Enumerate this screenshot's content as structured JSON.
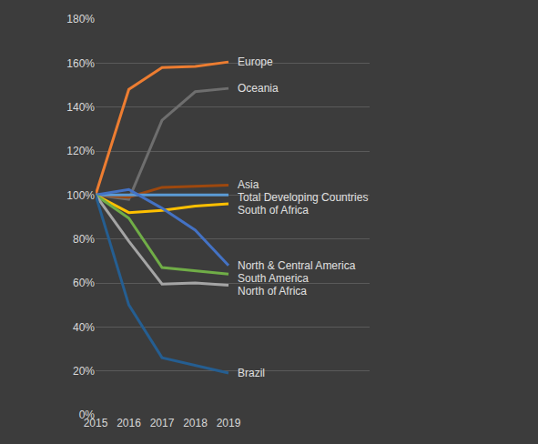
{
  "chart_data": {
    "type": "line",
    "categories": [
      "2015",
      "2016",
      "2017",
      "2018",
      "2019"
    ],
    "series": [
      {
        "name": "Europe",
        "color": "#ed7d31",
        "values": [
          100,
          148,
          158,
          158.5,
          160.5
        ]
      },
      {
        "name": "Oceania",
        "color": "#6e6e6e",
        "values": [
          100,
          98,
          134,
          147,
          148.5
        ]
      },
      {
        "name": "Asia",
        "color": "#9e480e",
        "values": [
          100,
          99,
          103.5,
          104,
          104.5
        ]
      },
      {
        "name": "Total Developing Countries",
        "color": "#5b9bd5",
        "values": [
          100,
          100,
          100,
          100,
          100
        ]
      },
      {
        "name": "South of Africa",
        "color": "#ffc000",
        "values": [
          100,
          92,
          93,
          95,
          96
        ]
      },
      {
        "name": "North & Central America",
        "color": "#4472c4",
        "values": [
          100,
          102.5,
          94,
          84,
          68
        ]
      },
      {
        "name": "South America",
        "color": "#70ad47",
        "values": [
          100,
          89.5,
          67,
          65.5,
          64
        ]
      },
      {
        "name": "North of Africa",
        "color": "#a5a5a5",
        "values": [
          100,
          79,
          59.5,
          60,
          59
        ]
      },
      {
        "name": "Brazil",
        "color": "#255e91",
        "values": [
          100,
          50,
          26,
          22.5,
          19
        ]
      }
    ],
    "ylim": [
      0,
      180
    ],
    "yticks": [
      {
        "value": 0,
        "label": "0%"
      },
      {
        "value": 20,
        "label": "20%"
      },
      {
        "value": 40,
        "label": "40%"
      },
      {
        "value": 60,
        "label": "60%"
      },
      {
        "value": 80,
        "label": "80%"
      },
      {
        "value": 100,
        "label": "100%"
      },
      {
        "value": 120,
        "label": "120%"
      },
      {
        "value": 140,
        "label": "140%"
      },
      {
        "value": 160,
        "label": "160%"
      },
      {
        "value": 180,
        "label": "180%"
      }
    ],
    "grid": true
  }
}
